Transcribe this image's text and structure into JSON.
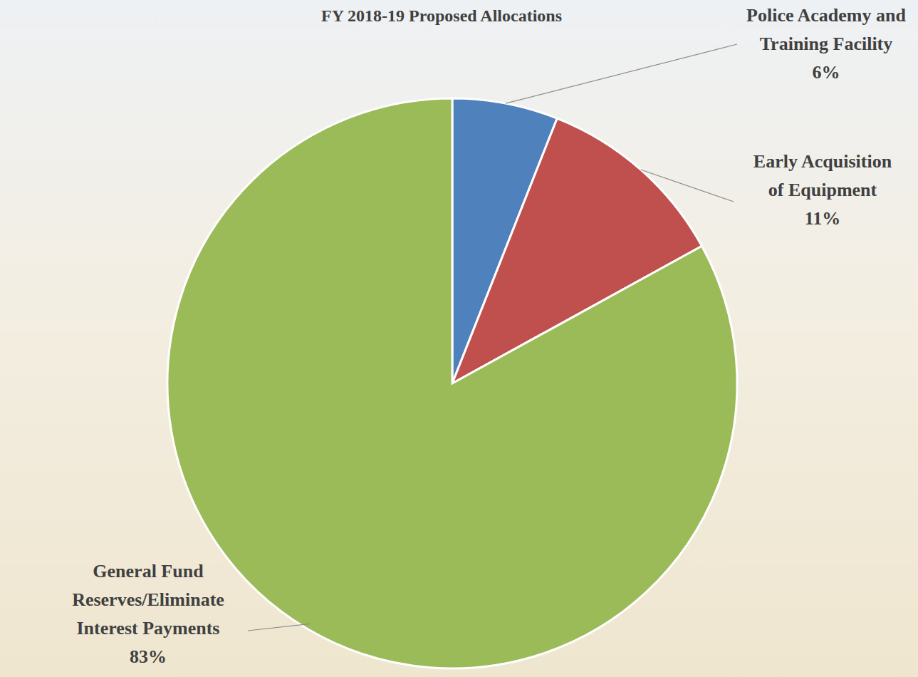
{
  "chart_data": {
    "type": "pie",
    "title": "FY 2018-19 Proposed Allocations",
    "categories": [
      "Police Academy and Training Facility",
      "Early Acquisition of Equipment",
      "General Fund Reserves/Eliminate Interest Payments"
    ],
    "values": [
      6,
      11,
      83
    ],
    "value_labels": [
      "6%",
      "11%",
      "83%"
    ],
    "colors": [
      "#4f81bd",
      "#c0504d",
      "#9bbb59"
    ],
    "data_labels": true
  }
}
